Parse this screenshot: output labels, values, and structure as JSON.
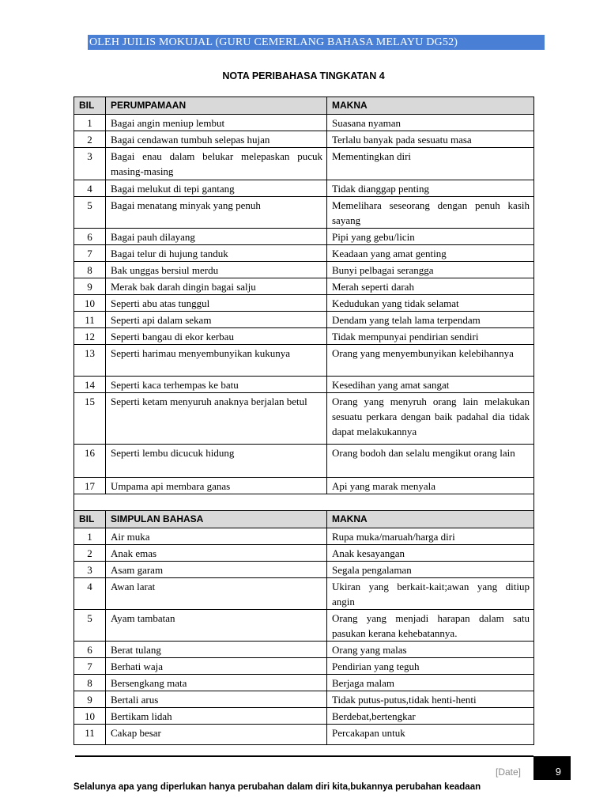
{
  "header": {
    "banner": "OLEH JUILIS MOKUJAL (GURU CEMERLANG BAHASA MELAYU DG52)",
    "banner_color": "#4a7fd6"
  },
  "title": "NOTA PERIBAHASA TINGKATAN 4",
  "section1": {
    "headers": [
      "BIL",
      "PERUMPAMAAN",
      "MAKNA"
    ],
    "rows": [
      [
        "1",
        "Bagai angin meniup lembut",
        "Suasana nyaman"
      ],
      [
        "2",
        "Bagai cendawan tumbuh selepas hujan",
        "Terlalu banyak pada sesuatu masa"
      ],
      [
        "3",
        "Bagai enau dalam belukar melepaskan pucuk masing-masing",
        "Mementingkan diri"
      ],
      [
        "4",
        "Bagai melukut di tepi gantang",
        "Tidak dianggap penting"
      ],
      [
        "5",
        "Bagai menatang minyak yang penuh",
        "Memelihara seseorang dengan penuh kasih sayang"
      ],
      [
        "6",
        "Bagai pauh dilayang",
        "Pipi yang gebu/licin"
      ],
      [
        "7",
        "Bagai telur di hujung tanduk",
        "Keadaan yang amat genting"
      ],
      [
        "8",
        "Bak unggas bersiul merdu",
        "Bunyi pelbagai serangga"
      ],
      [
        "9",
        "Merak bak darah dingin bagai salju",
        "Merah seperti darah"
      ],
      [
        "10",
        "Seperti abu atas tunggul",
        "Kedudukan yang tidak selamat"
      ],
      [
        "11",
        "Seperti api dalam sekam",
        "Dendam yang telah lama terpendam"
      ],
      [
        "12",
        "Seperti bangau di ekor kerbau",
        "Tidak mempunyai pendirian sendiri"
      ],
      [
        "13",
        "Seperti harimau menyembunyikan kukunya",
        "Orang yang menyembunyikan kelebihannya"
      ],
      [
        "14",
        "Seperti kaca terhempas ke batu",
        "Kesedihan yang amat sangat"
      ],
      [
        "15",
        "Seperti ketam menyuruh anaknya berjalan betul",
        "Orang yang menyruh orang lain melakukan sesuatu perkara dengan baik padahal dia tidak dapat melakukannya"
      ],
      [
        "16",
        "Seperti lembu dicucuk hidung",
        "Orang bodoh dan selalu mengikut orang lain"
      ],
      [
        "17",
        "Umpama api membara ganas",
        "Api yang marak menyala"
      ]
    ]
  },
  "section2": {
    "headers": [
      "BIL",
      "SIMPULAN BAHASA",
      "MAKNA"
    ],
    "rows": [
      [
        "1",
        "Air muka",
        "Rupa muka/maruah/harga diri"
      ],
      [
        "2",
        "Anak emas",
        "Anak kesayangan"
      ],
      [
        "3",
        "Asam garam",
        "Segala pengalaman"
      ],
      [
        "4",
        "Awan larat",
        "Ukiran yang berkait-kait;awan yang ditiup angin"
      ],
      [
        "5",
        "Ayam tambatan",
        "Orang yang menjadi harapan dalam satu pasukan kerana kehebatannya."
      ],
      [
        "6",
        "Berat tulang",
        "Orang yang malas"
      ],
      [
        "7",
        "Berhati waja",
        "Pendirian yang teguh"
      ],
      [
        "8",
        "Bersengkang mata",
        "Berjaga malam"
      ],
      [
        "9",
        "Bertali arus",
        "Tidak putus-putus,tidak henti-henti"
      ],
      [
        "10",
        "Bertikam lidah",
        "Berdebat,bertengkar"
      ],
      [
        "11",
        "Cakap besar",
        "Percakapan untuk"
      ]
    ]
  },
  "footer": {
    "date": "[Date]",
    "page": "9",
    "quote": "Selalunya apa yang diperlukan hanya perubahan dalam diri kita,bukannya perubahan keadaan"
  }
}
